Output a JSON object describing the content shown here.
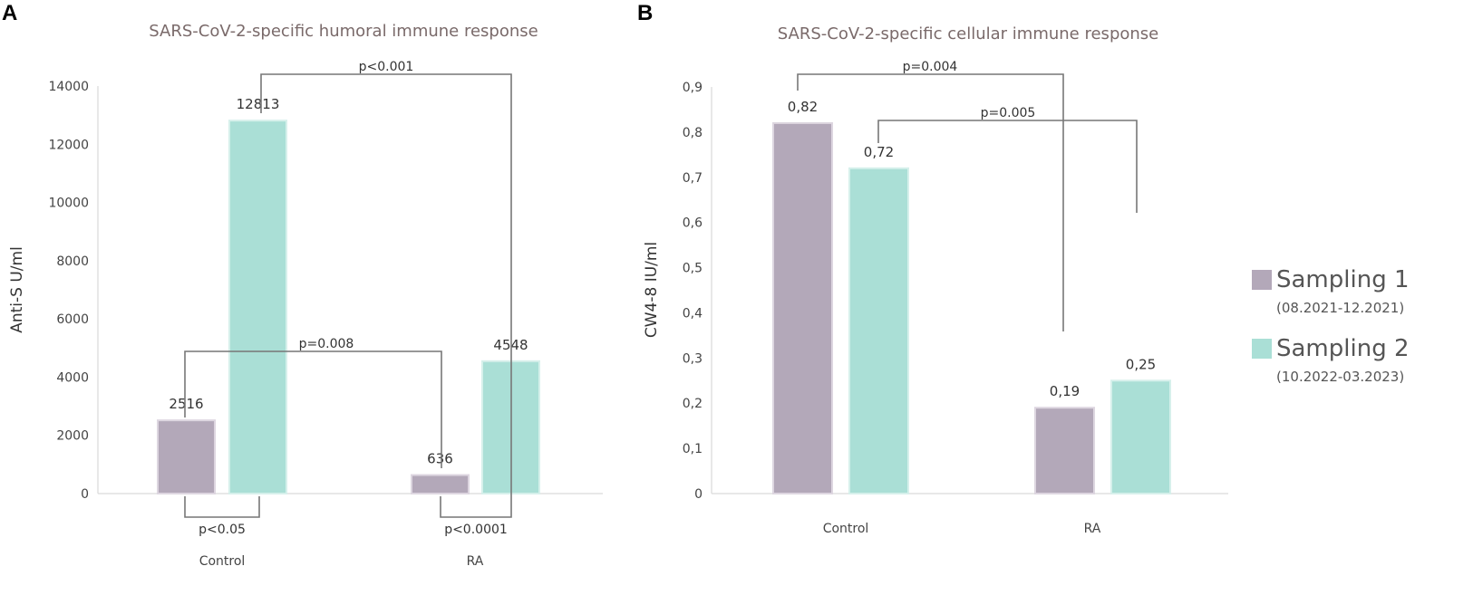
{
  "colors": {
    "sampling1": "#b3a8b9",
    "sampling2": "#aadfd6",
    "sampling1_edge": "#ddd6e0",
    "sampling2_edge": "#d6f0eb"
  },
  "legend": {
    "items": [
      {
        "label": "Sampling 1",
        "period": "(08.2021-12.2021)",
        "color_key": "sampling1"
      },
      {
        "label": "Sampling 2",
        "period": "(10.2022-03.2023)",
        "color_key": "sampling2"
      }
    ]
  },
  "chart_data": [
    {
      "panel": "A",
      "type": "bar",
      "title": "SARS-CoV-2-specific humoral immune response",
      "ylabel": "Anti-S U/ml",
      "xlabel": "",
      "ylim": [
        0,
        14000
      ],
      "yticks": [
        0,
        2000,
        4000,
        6000,
        8000,
        10000,
        12000,
        14000
      ],
      "tick_labels": [
        "0",
        "2000",
        "4000",
        "6000",
        "8000",
        "10000",
        "12000",
        "14000"
      ],
      "categories": [
        "Control",
        "RA"
      ],
      "series": [
        {
          "name": "Sampling 1",
          "values": [
            2516,
            636
          ],
          "labels": [
            "2516",
            "636"
          ]
        },
        {
          "name": "Sampling 2",
          "values": [
            12813,
            4548
          ],
          "labels": [
            "12813",
            "4548"
          ]
        }
      ],
      "comparisons": [
        {
          "label": "p<0.001",
          "from": [
            0,
            1
          ],
          "to": [
            1,
            1
          ],
          "side": "top"
        },
        {
          "label": "p=0.008",
          "from": [
            0,
            0
          ],
          "to": [
            1,
            0
          ],
          "side": "top"
        },
        {
          "label": "p<0.05",
          "from": [
            0,
            0
          ],
          "to": [
            0,
            1
          ],
          "side": "bottom"
        },
        {
          "label": "p<0.0001",
          "from": [
            1,
            0
          ],
          "to": [
            1,
            1
          ],
          "side": "bottom"
        }
      ]
    },
    {
      "panel": "B",
      "type": "bar",
      "title": "SARS-CoV-2-specific cellular immune response",
      "ylabel": "CW4-8 IU/ml",
      "xlabel": "",
      "ylim": [
        0,
        0.9
      ],
      "yticks": [
        0,
        0.1,
        0.2,
        0.3,
        0.4,
        0.5,
        0.6,
        0.7,
        0.8,
        0.9
      ],
      "tick_labels": [
        "0",
        "0,1",
        "0,2",
        "0,3",
        "0,4",
        "0,5",
        "0,6",
        "0,7",
        "0,8",
        "0,9"
      ],
      "categories": [
        "Control",
        "RA"
      ],
      "series": [
        {
          "name": "Sampling 1",
          "values": [
            0.82,
            0.19
          ],
          "labels": [
            "0,82",
            "0,19"
          ]
        },
        {
          "name": "Sampling 2",
          "values": [
            0.72,
            0.25
          ],
          "labels": [
            "0,72",
            "0,25"
          ]
        }
      ],
      "comparisons": [
        {
          "label": "p=0.004",
          "from": [
            0,
            0
          ],
          "to": [
            1,
            0
          ],
          "side": "top"
        },
        {
          "label": "p=0.005",
          "from": [
            0,
            1
          ],
          "to": [
            1,
            1
          ],
          "side": "top"
        }
      ]
    }
  ]
}
